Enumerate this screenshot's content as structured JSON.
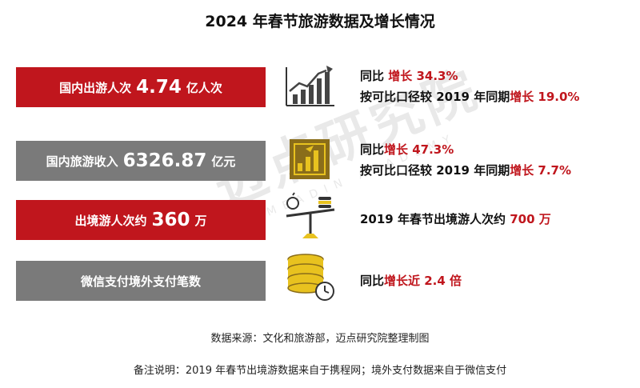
{
  "title": "2024 年春节旅游数据及增长情况",
  "watermark": {
    "cn": "迈点研究院",
    "en": "MEADIN ACADEMY"
  },
  "rows": [
    {
      "label_pre": "国内出游人次",
      "label_value": "4.74",
      "label_post": "亿人次",
      "color": "#c0161d",
      "icon": "growth-chart-icon",
      "lines": [
        {
          "prefix": "同比",
          "highlight": "增长 34.3%"
        },
        {
          "prefix": "按可比口径较 2019 年同期",
          "highlight": "增长 19.0%"
        }
      ]
    },
    {
      "label_pre": "国内旅游收入",
      "label_value": "6326.87",
      "label_post": "亿元",
      "color": "#7a7a7a",
      "icon": "revenue-chart-icon",
      "lines": [
        {
          "prefix": "同比",
          "highlight": "增长 47.3%"
        },
        {
          "prefix": "按可比口径较 2019 年同期",
          "highlight": "增长 7.7%"
        }
      ]
    },
    {
      "label_pre": "出境游人次约",
      "label_value": "360",
      "label_post": "万",
      "color": "#c0161d",
      "icon": "balance-scale-icon",
      "lines": [
        {
          "prefix": "2019 年春节出境游人次约",
          "highlight": "700 万"
        }
      ]
    },
    {
      "label_pre": "微信支付境外支付笔数",
      "label_value": "",
      "label_post": "",
      "color": "#7a7a7a",
      "icon": "coin-stack-clock-icon",
      "lines": [
        {
          "prefix": "同比",
          "highlight": "增长近 2.4 倍"
        }
      ]
    }
  ],
  "source": "数据来源：文化和旅游部，迈点研究院整理制图",
  "note": "备注说明：2019 年春节出境游数据来自于携程网；境外支付数据来自于微信支付",
  "colors": {
    "accent_red": "#c0161d",
    "grey": "#7a7a7a",
    "gold": "#e8c21f",
    "dark_gold": "#8a6d1a"
  }
}
